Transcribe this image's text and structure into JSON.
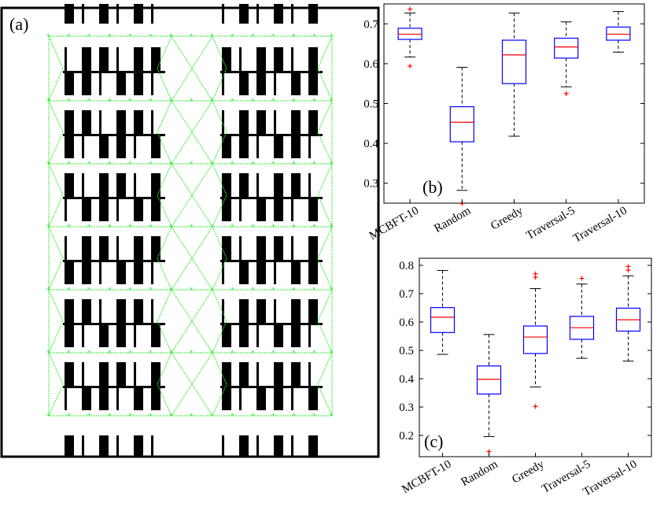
{
  "colors": {
    "graph": "#33ee33",
    "box": "#0000ff",
    "median": "#ff0000",
    "outlier": "#ff0000",
    "whisker": "#000000",
    "bar": "#000000"
  },
  "map_panel": {
    "label": "(a)",
    "description_icon": "warehouse-shelf-layout-graph"
  },
  "chart_data": [
    {
      "type": "boxplot",
      "panel_label": "(b)",
      "categories": [
        "MCBFT-10",
        "Random",
        "Greedy",
        "Traversal-5",
        "Traversal-10"
      ],
      "ylim": [
        0.25,
        0.75
      ],
      "yticks": [
        0.3,
        0.4,
        0.5,
        0.6,
        0.7
      ],
      "ytick_labels": [
        "0.3",
        "0.4",
        "0.5",
        "0.6",
        "0.7"
      ],
      "grid": false,
      "boxes": [
        {
          "whisker_low": 0.617,
          "q1": 0.661,
          "median": 0.674,
          "q3": 0.689,
          "whisker_high": 0.727,
          "outliers": [
            0.737,
            0.594
          ]
        },
        {
          "whisker_low": 0.282,
          "q1": 0.404,
          "median": 0.453,
          "q3": 0.492,
          "whisker_high": 0.591,
          "outliers": [
            0.249
          ]
        },
        {
          "whisker_low": 0.418,
          "q1": 0.55,
          "median": 0.622,
          "q3": 0.659,
          "whisker_high": 0.727,
          "outliers": []
        },
        {
          "whisker_low": 0.542,
          "q1": 0.614,
          "median": 0.642,
          "q3": 0.664,
          "whisker_high": 0.705,
          "outliers": [
            0.525
          ]
        },
        {
          "whisker_low": 0.629,
          "q1": 0.659,
          "median": 0.674,
          "q3": 0.692,
          "whisker_high": 0.731,
          "outliers": []
        }
      ]
    },
    {
      "type": "boxplot",
      "panel_label": "(c)",
      "categories": [
        "MCBFT-10",
        "Random",
        "Greedy",
        "Traversal-5",
        "Traversal-10"
      ],
      "ylim": [
        0.125,
        0.825
      ],
      "yticks": [
        0.2,
        0.3,
        0.4,
        0.5,
        0.6,
        0.7,
        0.8
      ],
      "ytick_labels": [
        "0.2",
        "0.3",
        "0.4",
        "0.5",
        "0.6",
        "0.7",
        "0.8"
      ],
      "grid": false,
      "boxes": [
        {
          "whisker_low": 0.486,
          "q1": 0.563,
          "median": 0.617,
          "q3": 0.651,
          "whisker_high": 0.782,
          "outliers": []
        },
        {
          "whisker_low": 0.196,
          "q1": 0.346,
          "median": 0.398,
          "q3": 0.445,
          "whisker_high": 0.556,
          "outliers": [
            0.143
          ]
        },
        {
          "whisker_low": 0.371,
          "q1": 0.489,
          "median": 0.547,
          "q3": 0.586,
          "whisker_high": 0.718,
          "outliers": [
            0.77,
            0.758,
            0.302
          ]
        },
        {
          "whisker_low": 0.472,
          "q1": 0.539,
          "median": 0.58,
          "q3": 0.62,
          "whisker_high": 0.734,
          "outliers": [
            0.754
          ]
        },
        {
          "whisker_low": 0.462,
          "q1": 0.568,
          "median": 0.608,
          "q3": 0.649,
          "whisker_high": 0.763,
          "outliers": [
            0.796,
            0.783
          ]
        }
      ]
    }
  ]
}
